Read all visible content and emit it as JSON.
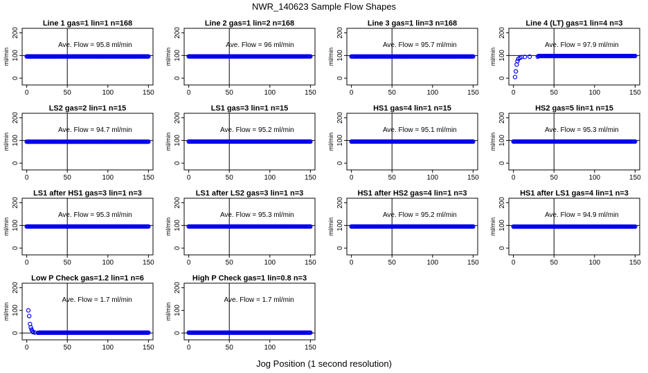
{
  "figure": {
    "title": "NWR_140623  Sample Flow Shapes",
    "xlabel": "Jog Position (1 second resolution)"
  },
  "chart_data": [
    {
      "type": "scatter",
      "title": "Line 1 gas=1 lin=1 n=168",
      "annotation": "Ave. Flow = 95.8  ml/min",
      "ylabel": "ml/min",
      "xlim": [
        0,
        150
      ],
      "ylim": [
        -30,
        220
      ],
      "xticks": [
        0,
        50,
        100,
        150
      ],
      "yticks": [
        0,
        100,
        200
      ],
      "vline": 50,
      "hline": 100,
      "shape": "flat",
      "level": 95.8
    },
    {
      "type": "scatter",
      "title": "Line 2 gas=1 lin=2 n=168",
      "annotation": "Ave. Flow = 96  ml/min",
      "ylabel": "ml/min",
      "xlim": [
        0,
        150
      ],
      "ylim": [
        -30,
        220
      ],
      "xticks": [
        0,
        50,
        100,
        150
      ],
      "yticks": [
        0,
        100,
        200
      ],
      "vline": 50,
      "hline": 100,
      "shape": "flat",
      "level": 96
    },
    {
      "type": "scatter",
      "title": "Line 3 gas=1 lin=3 n=168",
      "annotation": "Ave. Flow = 95.7  ml/min",
      "ylabel": "ml/min",
      "xlim": [
        0,
        150
      ],
      "ylim": [
        -30,
        220
      ],
      "xticks": [
        0,
        50,
        100,
        150
      ],
      "yticks": [
        0,
        100,
        200
      ],
      "vline": 50,
      "hline": 100,
      "shape": "flat",
      "level": 95.7
    },
    {
      "type": "scatter",
      "title": "Line 4 (LT) gas=1 lin=4 n=3",
      "annotation": "Ave. Flow = 97.9  ml/min",
      "ylabel": "ml/min",
      "xlim": [
        0,
        150
      ],
      "ylim": [
        -30,
        220
      ],
      "xticks": [
        0,
        50,
        100,
        150
      ],
      "yticks": [
        0,
        100,
        200
      ],
      "vline": 50,
      "hline": 100,
      "shape": "rise",
      "level": 97.9,
      "start_points": [
        {
          "x": 2,
          "y": 5
        },
        {
          "x": 3,
          "y": 30
        },
        {
          "x": 4,
          "y": 60
        },
        {
          "x": 5,
          "y": 75
        },
        {
          "x": 6,
          "y": 85
        },
        {
          "x": 8,
          "y": 90
        },
        {
          "x": 10,
          "y": 93
        },
        {
          "x": 14,
          "y": 94
        },
        {
          "x": 20,
          "y": 95
        },
        {
          "x": 30,
          "y": 95
        }
      ]
    },
    {
      "type": "scatter",
      "title": "LS2 gas=2 lin=1 n=15",
      "annotation": "Ave. Flow = 94.7  ml/min",
      "ylabel": "ml/min",
      "xlim": [
        0,
        150
      ],
      "ylim": [
        -30,
        220
      ],
      "xticks": [
        0,
        50,
        100,
        150
      ],
      "yticks": [
        0,
        100,
        200
      ],
      "vline": 50,
      "hline": 100,
      "shape": "flat",
      "level": 94.7
    },
    {
      "type": "scatter",
      "title": "LS1 gas=3 lin=1 n=15",
      "annotation": "Ave. Flow = 95.2  ml/min",
      "ylabel": "ml/min",
      "xlim": [
        0,
        150
      ],
      "ylim": [
        -30,
        220
      ],
      "xticks": [
        0,
        50,
        100,
        150
      ],
      "yticks": [
        0,
        100,
        200
      ],
      "vline": 50,
      "hline": 100,
      "shape": "flat",
      "level": 95.2
    },
    {
      "type": "scatter",
      "title": "HS1 gas=4 lin=1 n=15",
      "annotation": "Ave. Flow = 95.1  ml/min",
      "ylabel": "ml/min",
      "xlim": [
        0,
        150
      ],
      "ylim": [
        -30,
        220
      ],
      "xticks": [
        0,
        50,
        100,
        150
      ],
      "yticks": [
        0,
        100,
        200
      ],
      "vline": 50,
      "hline": 100,
      "shape": "flat",
      "level": 95.1
    },
    {
      "type": "scatter",
      "title": "HS2 gas=5 lin=1 n=15",
      "annotation": "Ave. Flow = 95.3  ml/min",
      "ylabel": "ml/min",
      "xlim": [
        0,
        150
      ],
      "ylim": [
        -30,
        220
      ],
      "xticks": [
        0,
        50,
        100,
        150
      ],
      "yticks": [
        0,
        100,
        200
      ],
      "vline": 50,
      "hline": 100,
      "shape": "flat",
      "level": 95.3
    },
    {
      "type": "scatter",
      "title": "LS1 after HS1 gas=3 lin=1 n=3",
      "annotation": "Ave. Flow = 95.3  ml/min",
      "ylabel": "ml/min",
      "xlim": [
        0,
        150
      ],
      "ylim": [
        -30,
        220
      ],
      "xticks": [
        0,
        50,
        100,
        150
      ],
      "yticks": [
        0,
        100,
        200
      ],
      "vline": 50,
      "hline": 100,
      "shape": "flat",
      "level": 95.3
    },
    {
      "type": "scatter",
      "title": "LS1 after LS2 gas=3 lin=1 n=3",
      "annotation": "Ave. Flow = 95.3  ml/min",
      "ylabel": "ml/min",
      "xlim": [
        0,
        150
      ],
      "ylim": [
        -30,
        220
      ],
      "xticks": [
        0,
        50,
        100,
        150
      ],
      "yticks": [
        0,
        100,
        200
      ],
      "vline": 50,
      "hline": 100,
      "shape": "flat",
      "level": 95.3
    },
    {
      "type": "scatter",
      "title": "HS1 after HS2 gas=4 lin=1 n=3",
      "annotation": "Ave. Flow = 95.2  ml/min",
      "ylabel": "ml/min",
      "xlim": [
        0,
        150
      ],
      "ylim": [
        -30,
        220
      ],
      "xticks": [
        0,
        50,
        100,
        150
      ],
      "yticks": [
        0,
        100,
        200
      ],
      "vline": 50,
      "hline": 100,
      "shape": "flat",
      "level": 95.2
    },
    {
      "type": "scatter",
      "title": "HS1 after LS1 gas=4 lin=1 n=3",
      "annotation": "Ave. Flow = 94.9  ml/min",
      "ylabel": "ml/min",
      "xlim": [
        0,
        150
      ],
      "ylim": [
        -30,
        220
      ],
      "xticks": [
        0,
        50,
        100,
        150
      ],
      "yticks": [
        0,
        100,
        200
      ],
      "vline": 50,
      "hline": 100,
      "shape": "flat",
      "level": 94.9
    },
    {
      "type": "scatter",
      "title": "Low P Check gas=1.2 lin=1 n=6",
      "annotation": "Ave. Flow = 1.7  ml/min",
      "ylabel": "ml/min",
      "xlim": [
        0,
        150
      ],
      "ylim": [
        -30,
        220
      ],
      "xticks": [
        0,
        50,
        100,
        150
      ],
      "yticks": [
        0,
        100,
        200
      ],
      "vline": 50,
      "hline": 0,
      "shape": "decay",
      "level": 1.7,
      "start_points": [
        {
          "x": 2,
          "y": 100
        },
        {
          "x": 3,
          "y": 75
        },
        {
          "x": 4,
          "y": 40
        },
        {
          "x": 5,
          "y": 25
        },
        {
          "x": 6,
          "y": 15
        },
        {
          "x": 7,
          "y": 8
        },
        {
          "x": 8,
          "y": 4
        },
        {
          "x": 10,
          "y": 2
        },
        {
          "x": 14,
          "y": 1
        }
      ]
    },
    {
      "type": "scatter",
      "title": "High P Check gas=1 lin=0.8 n=3",
      "annotation": "Ave. Flow = 1.7  ml/min",
      "ylabel": "ml/min",
      "xlim": [
        0,
        150
      ],
      "ylim": [
        -30,
        220
      ],
      "xticks": [
        0,
        50,
        100,
        150
      ],
      "yticks": [
        0,
        100,
        200
      ],
      "vline": 50,
      "hline": 0,
      "shape": "flat",
      "level": 1.7
    }
  ]
}
